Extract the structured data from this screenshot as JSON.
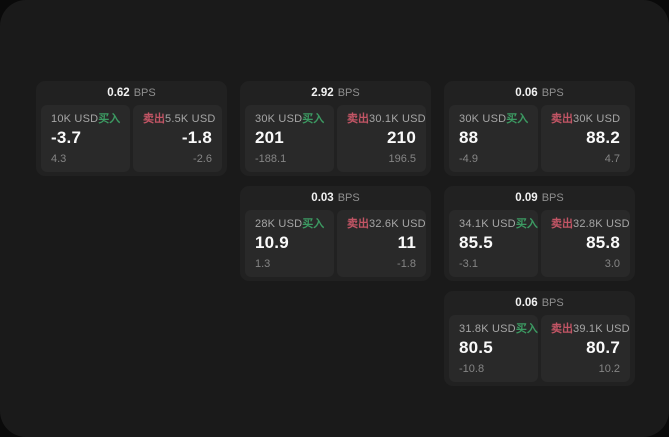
{
  "labels": {
    "bps_unit": "BPS",
    "buy": "买入",
    "sell": "卖出"
  },
  "colors": {
    "buy": "#3c9a62",
    "sell": "#c25565",
    "panel": "#1a1a1a",
    "card": "#212121",
    "pane": "#292929"
  },
  "cards": [
    {
      "bps": "0.62",
      "buy": {
        "amount": "10K USD",
        "price": "-3.7",
        "sub": "4.3"
      },
      "sell": {
        "amount": "5.5K USD",
        "price": "-1.8",
        "sub": "-2.6"
      }
    },
    {
      "bps": "2.92",
      "buy": {
        "amount": "30K USD",
        "price": "201",
        "sub": "-188.1"
      },
      "sell": {
        "amount": "30.1K USD",
        "price": "210",
        "sub": "196.5"
      }
    },
    {
      "bps": "0.06",
      "buy": {
        "amount": "30K USD",
        "price": "88",
        "sub": "-4.9"
      },
      "sell": {
        "amount": "30K USD",
        "price": "88.2",
        "sub": "4.7"
      }
    },
    {
      "bps": "0.03",
      "buy": {
        "amount": "28K USD",
        "price": "10.9",
        "sub": "1.3"
      },
      "sell": {
        "amount": "32.6K USD",
        "price": "11",
        "sub": "-1.8"
      }
    },
    {
      "bps": "0.09",
      "buy": {
        "amount": "34.1K USD",
        "price": "85.5",
        "sub": "-3.1"
      },
      "sell": {
        "amount": "32.8K USD",
        "price": "85.8",
        "sub": "3.0"
      }
    },
    {
      "bps": "0.06",
      "buy": {
        "amount": "31.8K USD",
        "price": "80.5",
        "sub": "-10.8"
      },
      "sell": {
        "amount": "39.1K USD",
        "price": "80.7",
        "sub": "10.2"
      }
    }
  ]
}
